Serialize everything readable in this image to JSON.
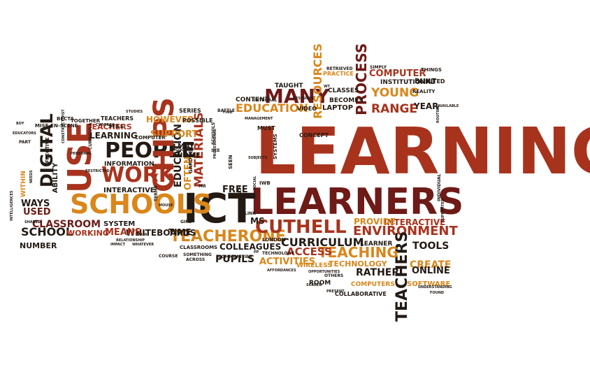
{
  "colors": {
    "background": "#ffffff",
    "rust": "#a8331d",
    "maroon": "#6e1a17",
    "orange": "#d9861b",
    "black": "#231a14",
    "plum": "#5a2a3a"
  },
  "words": [
    {
      "text": "LEARNING",
      "color": "rust",
      "rotate": 0
    },
    {
      "text": "LEARNERS",
      "color": "maroon",
      "rotate": 0
    },
    {
      "text": "ICT",
      "color": "black",
      "rotate": 0
    },
    {
      "text": "SCHOOLS",
      "color": "orange",
      "rotate": 0
    },
    {
      "text": "USE",
      "color": "rust",
      "rotate": -90
    },
    {
      "text": "PEOPLE",
      "color": "black",
      "rotate": 0
    },
    {
      "text": "WORK",
      "color": "rust",
      "rotate": 0
    },
    {
      "text": "CHIPS",
      "color": "rust",
      "rotate": -90
    },
    {
      "text": "DIGITAL",
      "color": "black",
      "rotate": -90
    },
    {
      "text": "TEACHERONE",
      "color": "orange",
      "rotate": 0
    },
    {
      "text": "CUTHELL",
      "color": "rust",
      "rotate": 0
    },
    {
      "text": "CURRICULUM",
      "color": "black",
      "rotate": 0
    },
    {
      "text": "ENVIRONMENT",
      "color": "rust",
      "rotate": 0
    },
    {
      "text": "TEACHERS",
      "color": "black",
      "rotate": -90
    },
    {
      "text": "TEACHING",
      "color": "orange",
      "rotate": 0
    },
    {
      "text": "MANY",
      "color": "maroon",
      "rotate": 0
    },
    {
      "text": "EDUCATION",
      "color": "orange",
      "rotate": 0
    },
    {
      "text": "PROCESS",
      "color": "maroon",
      "rotate": -90
    },
    {
      "text": "YOUNG",
      "color": "orange",
      "rotate": 0
    },
    {
      "text": "RANGE",
      "color": "rust",
      "rotate": 0
    },
    {
      "text": "COMPUTER",
      "color": "rust",
      "rotate": 0
    },
    {
      "text": "RESOURCES",
      "color": "orange",
      "rotate": -90
    },
    {
      "text": "SCHOOL",
      "color": "black",
      "rotate": 0
    },
    {
      "text": "CLASSROOM",
      "color": "maroon",
      "rotate": 0
    },
    {
      "text": "WAYS",
      "color": "black",
      "rotate": 0
    },
    {
      "text": "USED",
      "color": "maroon",
      "rotate": 0
    },
    {
      "text": "MATERIALS",
      "color": "rust",
      "rotate": -90
    },
    {
      "text": "EDUCATION",
      "color": "black",
      "rotate": -90
    },
    {
      "text": "SUPPORT",
      "color": "orange",
      "rotate": 0
    },
    {
      "text": "HOWEVER",
      "color": "orange",
      "rotate": 0
    },
    {
      "text": "LEARNING",
      "color": "black",
      "rotate": 0
    },
    {
      "text": "TEACHERS",
      "color": "rust",
      "rotate": 0
    },
    {
      "text": "PUPILS",
      "color": "black",
      "rotate": 0
    },
    {
      "text": "COLLEAGUES",
      "color": "black",
      "rotate": 0
    },
    {
      "text": "ACTIVITIES",
      "color": "orange",
      "rotate": 0
    },
    {
      "text": "ACCESS",
      "color": "rust",
      "rotate": 0
    },
    {
      "text": "CREATE",
      "color": "orange",
      "rotate": 0
    },
    {
      "text": "ONLINE",
      "color": "black",
      "rotate": 0
    },
    {
      "text": "TOOLS",
      "color": "black",
      "rotate": 0
    },
    {
      "text": "RATHER",
      "color": "black",
      "rotate": 0
    },
    {
      "text": "INTERACTIVE",
      "color": "rust",
      "rotate": 0
    },
    {
      "text": "PROVIDE",
      "color": "orange",
      "rotate": 0
    },
    {
      "text": "WHITEBOARDS",
      "color": "black",
      "rotate": 0
    },
    {
      "text": "MEANS",
      "color": "rust",
      "rotate": 0
    },
    {
      "text": "TIME",
      "color": "black",
      "rotate": 0
    },
    {
      "text": "FREE",
      "color": "black",
      "rotate": 0
    },
    {
      "text": "MS",
      "color": "black",
      "rotate": 0
    },
    {
      "text": "NUMBER",
      "color": "black",
      "rotate": 0
    },
    {
      "text": "WORKING",
      "color": "rust",
      "rotate": 0
    },
    {
      "text": "SYSTEM",
      "color": "black",
      "rotate": 0
    },
    {
      "text": "INTERACTIVE",
      "color": "black",
      "rotate": 0
    },
    {
      "text": "INFORMATION",
      "color": "black",
      "rotate": 0
    },
    {
      "text": "OFTEN",
      "color": "orange",
      "rotate": -90
    },
    {
      "text": "MAY",
      "color": "black",
      "rotate": 0
    },
    {
      "text": "HOME",
      "color": "black",
      "rotate": 0
    },
    {
      "text": "LAPTOP",
      "color": "black",
      "rotate": 0
    },
    {
      "text": "BECOMES",
      "color": "black",
      "rotate": 0
    },
    {
      "text": "CONTENT",
      "color": "black",
      "rotate": 0
    },
    {
      "text": "TAUGHT",
      "color": "black",
      "rotate": 0
    },
    {
      "text": "CLASSES",
      "color": "black",
      "rotate": 0
    },
    {
      "text": "INSTITUTIONAL",
      "color": "black",
      "rotate": 0
    },
    {
      "text": "BUILT",
      "color": "black",
      "rotate": 0
    },
    {
      "text": "YEAR",
      "color": "black",
      "rotate": 0
    },
    {
      "text": "TECHNOLOGY",
      "color": "orange",
      "rotate": 0
    },
    {
      "text": "SOFTWARE",
      "color": "orange",
      "rotate": 0
    },
    {
      "text": "COMPUTERS",
      "color": "orange",
      "rotate": 0
    },
    {
      "text": "ROOM",
      "color": "black",
      "rotate": 0
    },
    {
      "text": "LEARNER",
      "color": "black",
      "rotate": 0
    },
    {
      "text": "WIRELESS",
      "color": "orange",
      "rotate": 0
    },
    {
      "text": "ABILITY",
      "color": "black",
      "rotate": -90
    },
    {
      "text": "WITHIN",
      "color": "orange",
      "rotate": -90
    },
    {
      "text": "COLLABORATIVE",
      "color": "black",
      "rotate": 0
    },
    {
      "text": "PRACTICE",
      "color": "orange",
      "rotate": 0
    },
    {
      "text": "RETRIEVED",
      "color": "black",
      "rotate": 0
    },
    {
      "text": "SIMPLY",
      "color": "black",
      "rotate": 0
    },
    {
      "text": "THINGS",
      "color": "black",
      "rotate": 0
    },
    {
      "text": "REALITY",
      "color": "black",
      "rotate": 0
    },
    {
      "text": "LIMITED",
      "color": "black",
      "rotate": 0
    },
    {
      "text": "CONCEPT",
      "color": "black",
      "rotate": 0
    },
    {
      "text": "MUST",
      "color": "black",
      "rotate": 0
    },
    {
      "text": "SERIES",
      "color": "black",
      "rotate": 0
    },
    {
      "text": "POSSIBLE",
      "color": "black",
      "rotate": 0
    },
    {
      "text": "BATTLE",
      "color": "black",
      "rotate": 0
    },
    {
      "text": "VIDEO",
      "color": "black",
      "rotate": 0
    },
    {
      "text": "TEACHERS",
      "color": "black",
      "rotate": 0
    },
    {
      "text": "TOGETHER",
      "color": "black",
      "rotate": 0
    },
    {
      "text": "BECTA",
      "color": "black",
      "rotate": 0
    },
    {
      "text": "MISE-EN-SCENE",
      "color": "black",
      "rotate": 0
    },
    {
      "text": "STILL",
      "color": "black",
      "rotate": 0
    },
    {
      "text": "COMPUTER",
      "color": "black",
      "rotate": 0
    },
    {
      "text": "SYSTEMS",
      "color": "black",
      "rotate": -90
    },
    {
      "text": "SEEN",
      "color": "black",
      "rotate": -90
    },
    {
      "text": "GARDNER",
      "color": "black",
      "rotate": -90
    },
    {
      "text": "IWB",
      "color": "black",
      "rotate": 0
    },
    {
      "text": "LONDON",
      "color": "black",
      "rotate": 0
    },
    {
      "text": "CLASSROOMS",
      "color": "black",
      "rotate": 0
    },
    {
      "text": "TECHNOLOGY",
      "color": "black",
      "rotate": 0
    },
    {
      "text": "SOMETHING",
      "color": "black",
      "rotate": 0
    },
    {
      "text": "COMMUNITIES",
      "color": "black",
      "rotate": 0
    },
    {
      "text": "ACROSS",
      "color": "black",
      "rotate": 0
    },
    {
      "text": "COURSE",
      "color": "black",
      "rotate": 0
    },
    {
      "text": "AFFORDANCES",
      "color": "black",
      "rotate": 0
    },
    {
      "text": "OPPORTUNITIES",
      "color": "black",
      "rotate": 0
    },
    {
      "text": "OTHERS",
      "color": "black",
      "rotate": 0
    },
    {
      "text": "SCREEN",
      "color": "black",
      "rotate": 0
    },
    {
      "text": "PRESENT",
      "color": "black",
      "rotate": 0
    },
    {
      "text": "FOUND",
      "color": "black",
      "rotate": 0
    },
    {
      "text": "UNDERSTANDING",
      "color": "black",
      "rotate": 0
    },
    {
      "text": "INDIVIDUAL",
      "color": "black",
      "rotate": -90
    },
    {
      "text": "SUPPORTED",
      "color": "black",
      "rotate": -90
    },
    {
      "text": "IMPACT",
      "color": "black",
      "rotate": 0
    },
    {
      "text": "WHATEVER",
      "color": "black",
      "rotate": 0
    },
    {
      "text": "RELATIONSHIP",
      "color": "black",
      "rotate": 0
    },
    {
      "text": "DATA",
      "color": "black",
      "rotate": 0
    },
    {
      "text": "PART",
      "color": "black",
      "rotate": 0
    },
    {
      "text": "EDUCATORS",
      "color": "black",
      "rotate": 0
    },
    {
      "text": "SHARED",
      "color": "black",
      "rotate": 0
    },
    {
      "text": "EFFECTIVE",
      "color": "black",
      "rotate": -90
    },
    {
      "text": "NEEDS",
      "color": "black",
      "rotate": -90
    },
    {
      "text": "INTELLIGENCES",
      "color": "black",
      "rotate": -90
    },
    {
      "text": "CONSTRUCTIVIST",
      "color": "black",
      "rotate": -90
    },
    {
      "text": "PERSONAL",
      "color": "black",
      "rotate": 0
    },
    {
      "text": "RESTRICTED",
      "color": "black",
      "rotate": 0
    },
    {
      "text": "CURRICULA",
      "color": "black",
      "rotate": -90
    },
    {
      "text": "STUDIES",
      "color": "black",
      "rotate": 0
    },
    {
      "text": "CYBORGS",
      "color": "black",
      "rotate": 0
    },
    {
      "text": "TERMS",
      "color": "black",
      "rotate": -90
    },
    {
      "text": "GOOD",
      "color": "black",
      "rotate": 0
    },
    {
      "text": "MOUSE",
      "color": "black",
      "rotate": 0
    },
    {
      "text": "MR",
      "color": "black",
      "rotate": 0
    },
    {
      "text": "GIRL",
      "color": "black",
      "rotate": 0
    },
    {
      "text": "SCHOOLS",
      "color": "black",
      "rotate": -90
    },
    {
      "text": "SEE",
      "color": "black",
      "rotate": 0
    },
    {
      "text": "FIND",
      "color": "black",
      "rotate": 0
    },
    {
      "text": "INTEGRAL",
      "color": "black",
      "rotate": 0
    },
    {
      "text": "MANAGEMENT",
      "color": "black",
      "rotate": 0
    },
    {
      "text": "SUBJECTS",
      "color": "black",
      "rotate": 0
    },
    {
      "text": "PROFESSIONAL",
      "color": "black",
      "rotate": -90
    },
    {
      "text": "SOCIAL",
      "color": "black",
      "rotate": -90
    },
    {
      "text": "RESEARCH",
      "color": "black",
      "rotate": -90
    },
    {
      "text": "LINK",
      "color": "black",
      "rotate": 0
    },
    {
      "text": "PP",
      "color": "black",
      "rotate": 0
    },
    {
      "text": "WT",
      "color": "black",
      "rotate": 0
    },
    {
      "text": "RESOURCE",
      "color": "black",
      "rotate": 0
    },
    {
      "text": "AVAILABLE",
      "color": "black",
      "rotate": 0
    },
    {
      "text": "ROUTINE",
      "color": "black",
      "rotate": -90
    },
    {
      "text": "BOY",
      "color": "black",
      "rotate": 0
    },
    {
      "text": "SHOUT",
      "color": "black",
      "rotate": -90
    },
    {
      "text": "WELL",
      "color": "black",
      "rotate": -90
    }
  ]
}
